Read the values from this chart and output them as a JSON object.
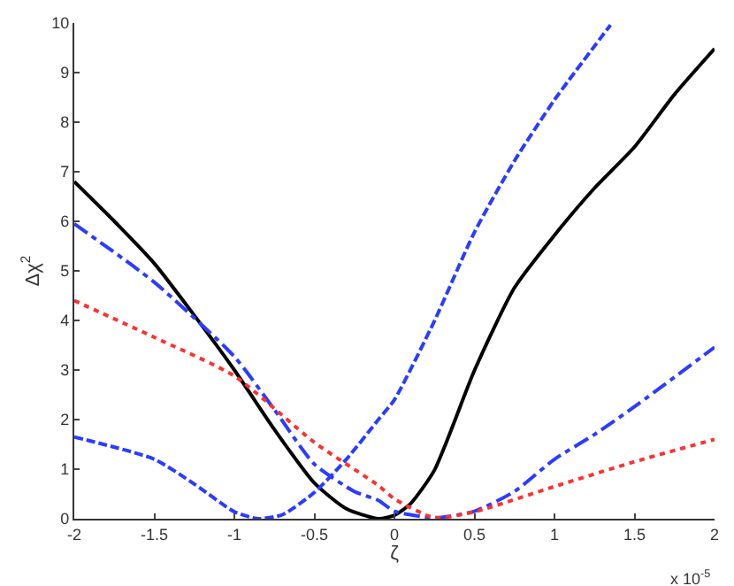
{
  "chart_data": {
    "type": "line",
    "xlabel": "ζ",
    "ylabel": "Δχ$^{2}$",
    "annotations": [
      "x 10$^{-5}$"
    ],
    "xlim": [
      -2,
      2
    ],
    "xticks": [
      -2,
      -1.5,
      -1,
      -0.5,
      0,
      0.5,
      1,
      1.5,
      2
    ],
    "ylim": [
      0,
      10
    ],
    "yticks": [
      0,
      1,
      2,
      3,
      4,
      5,
      6,
      7,
      8,
      9,
      10
    ],
    "marker": "none",
    "series": [
      {
        "color": "#000000",
        "line_style": "solid",
        "x": [
          -2,
          -1.75,
          -1.5,
          -1.25,
          -1,
          -0.75,
          -0.5,
          -0.3,
          -0.1,
          0,
          0.1,
          0.25,
          0.5,
          0.75,
          1,
          1.25,
          1.5,
          1.75,
          2
        ],
        "values": [
          6.8,
          6.0,
          5.15,
          4.1,
          3.0,
          1.8,
          0.72,
          0.2,
          0.0,
          0.07,
          0.3,
          0.98,
          2.99,
          4.66,
          5.72,
          6.67,
          7.5,
          8.56,
          9.48
        ]
      },
      {
        "color": "#2a3cff",
        "line_style": "dashed",
        "x": [
          -2,
          -1.5,
          -1.25,
          -1,
          -0.85,
          -0.7,
          -0.5,
          -0.3,
          -0.1,
          0,
          0.25,
          0.5,
          0.75,
          1,
          1.35
        ],
        "values": [
          1.65,
          1.2,
          0.7,
          0.14,
          0.0,
          0.08,
          0.53,
          1.2,
          2.0,
          2.4,
          3.99,
          5.78,
          7.22,
          8.45,
          9.96
        ]
      },
      {
        "color": "#2a3cff",
        "line_style": "dashdot",
        "x": [
          -2,
          -1.5,
          -1,
          -0.75,
          -0.5,
          -0.25,
          -0.1,
          0,
          0.25,
          0.5,
          0.75,
          1,
          1.25,
          1.5,
          2
        ],
        "values": [
          5.95,
          4.77,
          3.27,
          2.2,
          1.1,
          0.55,
          0.37,
          0.15,
          0.02,
          0.15,
          0.55,
          1.2,
          1.7,
          2.26,
          3.46
        ]
      },
      {
        "color": "#ff3030",
        "line_style": "dotted",
        "x": [
          -2,
          -1.5,
          -1,
          -0.5,
          -0.1,
          0,
          0.25,
          0.5,
          1,
          1.5,
          2
        ],
        "values": [
          4.4,
          3.66,
          2.88,
          1.54,
          0.67,
          0.4,
          0.02,
          0.14,
          0.65,
          1.15,
          1.6
        ]
      }
    ]
  }
}
